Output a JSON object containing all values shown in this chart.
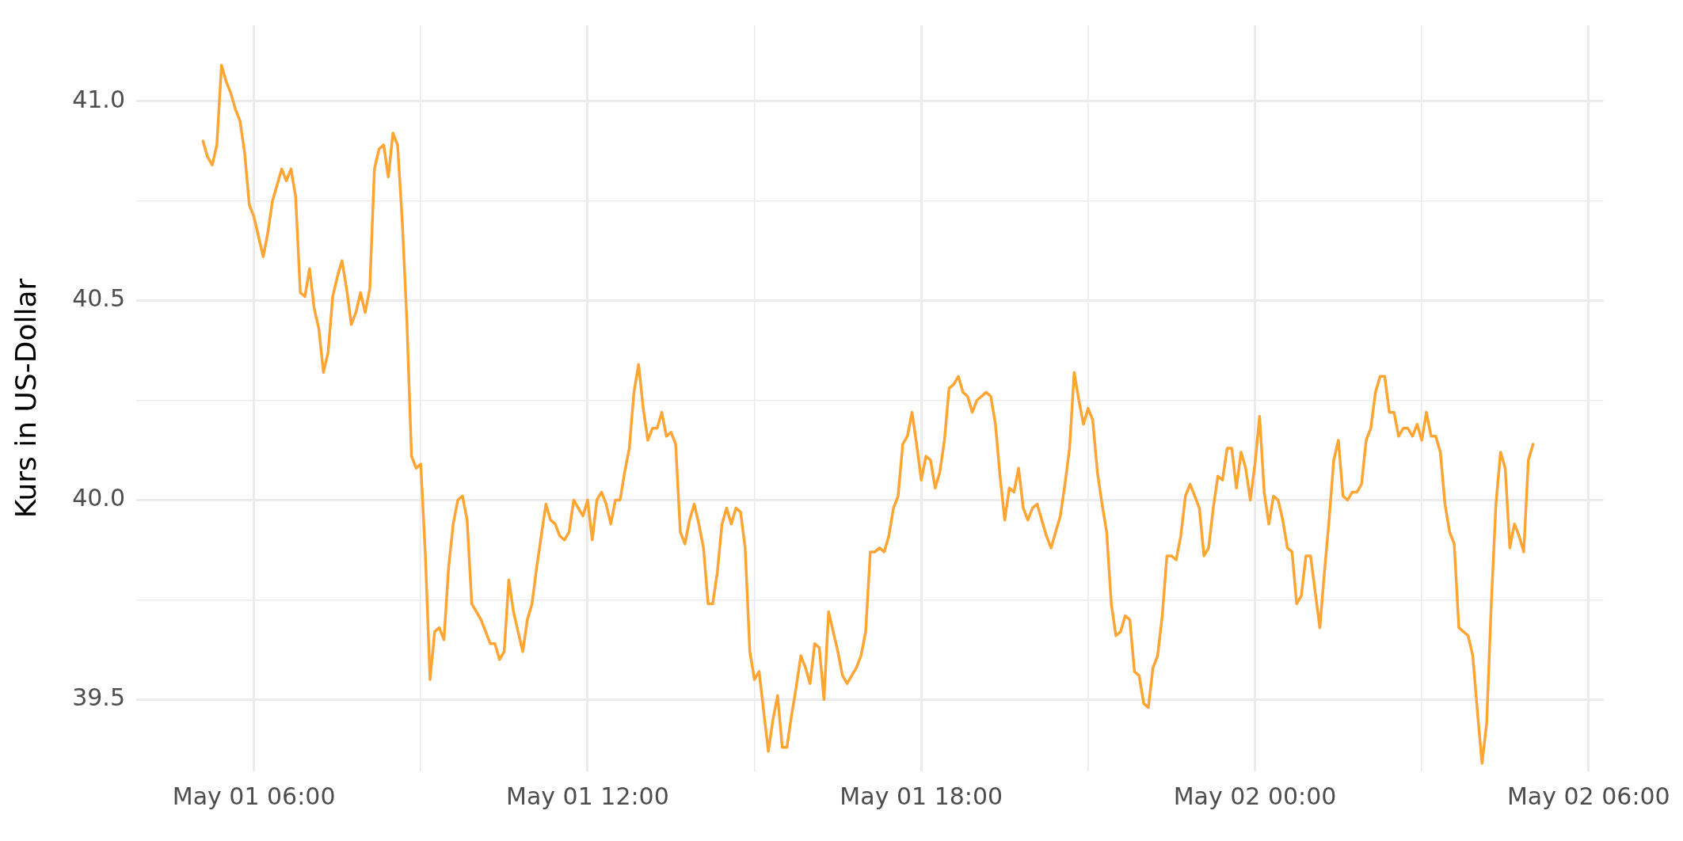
{
  "chart_data": {
    "type": "line",
    "ylabel": "Kurs in US-Dollar",
    "grid": true,
    "legend": false,
    "marker": "none",
    "line_style": "solid",
    "xlim": [
      "--05-01T03:53",
      "--05-02T06:16"
    ],
    "xticks": [
      {
        "value": "--05-01T06:00",
        "label": "May 01 06:00"
      },
      {
        "value": "--05-01T09:00",
        "label": null
      },
      {
        "value": "--05-01T12:00",
        "label": "May 01 12:00"
      },
      {
        "value": "--05-01T15:00",
        "label": null
      },
      {
        "value": "--05-01T18:00",
        "label": "May 01 18:00"
      },
      {
        "value": "--05-01T21:00",
        "label": null
      },
      {
        "value": "--05-02T00:00",
        "label": "May 02 00:00"
      },
      {
        "value": "--05-02T03:00",
        "label": null
      },
      {
        "value": "--05-02T06:00",
        "label": "May 02 06:00"
      }
    ],
    "ylim": [
      39.32,
      41.19
    ],
    "yticks": [
      {
        "value": 39.5,
        "label": "39.5"
      },
      {
        "value": 39.75,
        "label": null
      },
      {
        "value": 40,
        "label": "40.0"
      },
      {
        "value": 40.25,
        "label": null
      },
      {
        "value": 40.5,
        "label": "40.5"
      },
      {
        "value": 40.75,
        "label": null
      },
      {
        "value": 41,
        "label": "41.0"
      }
    ],
    "series": [
      {
        "color": "#ffa533",
        "x": [
          "--05-01T05:05",
          "--05-01T05:10",
          "--05-01T05:15",
          "--05-01T05:20",
          "--05-01T05:25",
          "--05-01T05:30",
          "--05-01T05:35",
          "--05-01T05:40",
          "--05-01T05:45",
          "--05-01T05:50",
          "--05-01T05:55",
          "--05-01T06:00",
          "--05-01T06:05",
          "--05-01T06:10",
          "--05-01T06:15",
          "--05-01T06:20",
          "--05-01T06:25",
          "--05-01T06:30",
          "--05-01T06:35",
          "--05-01T06:40",
          "--05-01T06:45",
          "--05-01T06:50",
          "--05-01T06:55",
          "--05-01T07:00",
          "--05-01T07:05",
          "--05-01T07:10",
          "--05-01T07:15",
          "--05-01T07:20",
          "--05-01T07:25",
          "--05-01T07:30",
          "--05-01T07:35",
          "--05-01T07:40",
          "--05-01T07:45",
          "--05-01T07:50",
          "--05-01T07:55",
          "--05-01T08:00",
          "--05-01T08:05",
          "--05-01T08:10",
          "--05-01T08:15",
          "--05-01T08:20",
          "--05-01T08:25",
          "--05-01T08:30",
          "--05-01T08:35",
          "--05-01T08:40",
          "--05-01T08:45",
          "--05-01T08:50",
          "--05-01T08:55",
          "--05-01T09:00",
          "--05-01T09:05",
          "--05-01T09:10",
          "--05-01T09:15",
          "--05-01T09:20",
          "--05-01T09:25",
          "--05-01T09:30",
          "--05-01T09:35",
          "--05-01T09:40",
          "--05-01T09:45",
          "--05-01T09:50",
          "--05-01T09:55",
          "--05-01T10:00",
          "--05-01T10:05",
          "--05-01T10:10",
          "--05-01T10:15",
          "--05-01T10:20",
          "--05-01T10:25",
          "--05-01T10:30",
          "--05-01T10:35",
          "--05-01T10:40",
          "--05-01T10:45",
          "--05-01T10:50",
          "--05-01T10:55",
          "--05-01T11:00",
          "--05-01T11:05",
          "--05-01T11:10",
          "--05-01T11:15",
          "--05-01T11:20",
          "--05-01T11:25",
          "--05-01T11:30",
          "--05-01T11:35",
          "--05-01T11:40",
          "--05-01T11:45",
          "--05-01T11:50",
          "--05-01T11:55",
          "--05-01T12:00",
          "--05-01T12:05",
          "--05-01T12:10",
          "--05-01T12:15",
          "--05-01T12:20",
          "--05-01T12:25",
          "--05-01T12:30",
          "--05-01T12:35",
          "--05-01T12:40",
          "--05-01T12:45",
          "--05-01T12:50",
          "--05-01T12:55",
          "--05-01T13:00",
          "--05-01T13:05",
          "--05-01T13:10",
          "--05-01T13:15",
          "--05-01T13:20",
          "--05-01T13:25",
          "--05-01T13:30",
          "--05-01T13:35",
          "--05-01T13:40",
          "--05-01T13:45",
          "--05-01T13:50",
          "--05-01T13:55",
          "--05-01T14:00",
          "--05-01T14:05",
          "--05-01T14:10",
          "--05-01T14:15",
          "--05-01T14:20",
          "--05-01T14:25",
          "--05-01T14:30",
          "--05-01T14:35",
          "--05-01T14:40",
          "--05-01T14:45",
          "--05-01T14:50",
          "--05-01T14:55",
          "--05-01T15:00",
          "--05-01T15:05",
          "--05-01T15:10",
          "--05-01T15:15",
          "--05-01T15:20",
          "--05-01T15:25",
          "--05-01T15:30",
          "--05-01T15:35",
          "--05-01T15:40",
          "--05-01T15:45",
          "--05-01T15:50",
          "--05-01T15:55",
          "--05-01T16:00",
          "--05-01T16:05",
          "--05-01T16:10",
          "--05-01T16:15",
          "--05-01T16:20",
          "--05-01T16:25",
          "--05-01T16:30",
          "--05-01T16:35",
          "--05-01T16:40",
          "--05-01T16:45",
          "--05-01T16:50",
          "--05-01T16:55",
          "--05-01T17:00",
          "--05-01T17:05",
          "--05-01T17:10",
          "--05-01T17:15",
          "--05-01T17:20",
          "--05-01T17:25",
          "--05-01T17:30",
          "--05-01T17:35",
          "--05-01T17:40",
          "--05-01T17:45",
          "--05-01T17:50",
          "--05-01T17:55",
          "--05-01T18:00",
          "--05-01T18:05",
          "--05-01T18:10",
          "--05-01T18:15",
          "--05-01T18:20",
          "--05-01T18:25",
          "--05-01T18:30",
          "--05-01T18:35",
          "--05-01T18:40",
          "--05-01T18:45",
          "--05-01T18:50",
          "--05-01T18:55",
          "--05-01T19:00",
          "--05-01T19:05",
          "--05-01T19:10",
          "--05-01T19:15",
          "--05-01T19:20",
          "--05-01T19:25",
          "--05-01T19:30",
          "--05-01T19:35",
          "--05-01T19:40",
          "--05-01T19:45",
          "--05-01T19:50",
          "--05-01T19:55",
          "--05-01T20:00",
          "--05-01T20:05",
          "--05-01T20:10",
          "--05-01T20:15",
          "--05-01T20:20",
          "--05-01T20:25",
          "--05-01T20:30",
          "--05-01T20:35",
          "--05-01T20:40",
          "--05-01T20:45",
          "--05-01T20:50",
          "--05-01T20:55",
          "--05-01T21:00",
          "--05-01T21:05",
          "--05-01T21:10",
          "--05-01T21:15",
          "--05-01T21:20",
          "--05-01T21:25",
          "--05-01T21:30",
          "--05-01T21:35",
          "--05-01T21:40",
          "--05-01T21:45",
          "--05-01T21:50",
          "--05-01T21:55",
          "--05-01T22:00",
          "--05-01T22:05",
          "--05-01T22:10",
          "--05-01T22:15",
          "--05-01T22:20",
          "--05-01T22:25",
          "--05-01T22:30",
          "--05-01T22:35",
          "--05-01T22:40",
          "--05-01T22:45",
          "--05-01T22:50",
          "--05-01T22:55",
          "--05-01T23:00",
          "--05-01T23:05",
          "--05-01T23:10",
          "--05-01T23:15",
          "--05-01T23:20",
          "--05-01T23:25",
          "--05-01T23:30",
          "--05-01T23:35",
          "--05-01T23:40",
          "--05-01T23:45",
          "--05-01T23:50",
          "--05-01T23:55",
          "--05-02T00:00",
          "--05-02T00:05",
          "--05-02T00:10",
          "--05-02T00:15",
          "--05-02T00:20",
          "--05-02T00:25",
          "--05-02T00:30",
          "--05-02T00:35",
          "--05-02T00:40",
          "--05-02T00:45",
          "--05-02T00:50",
          "--05-02T00:55",
          "--05-02T01:00",
          "--05-02T01:05",
          "--05-02T01:10",
          "--05-02T01:15",
          "--05-02T01:20",
          "--05-02T01:25",
          "--05-02T01:30",
          "--05-02T01:35",
          "--05-02T01:40",
          "--05-02T01:45",
          "--05-02T01:50",
          "--05-02T01:55",
          "--05-02T02:00",
          "--05-02T02:05",
          "--05-02T02:10",
          "--05-02T02:15",
          "--05-02T02:20",
          "--05-02T02:25",
          "--05-02T02:30",
          "--05-02T02:35",
          "--05-02T02:40",
          "--05-02T02:45",
          "--05-02T02:50",
          "--05-02T02:55",
          "--05-02T03:00",
          "--05-02T03:05",
          "--05-02T03:10",
          "--05-02T03:15",
          "--05-02T03:20",
          "--05-02T03:25",
          "--05-02T03:30",
          "--05-02T03:35",
          "--05-02T03:40",
          "--05-02T03:45",
          "--05-02T03:50",
          "--05-02T03:55",
          "--05-02T04:00",
          "--05-02T04:05",
          "--05-02T04:10",
          "--05-02T04:15",
          "--05-02T04:20",
          "--05-02T04:25",
          "--05-02T04:30",
          "--05-02T04:35",
          "--05-02T04:40",
          "--05-02T04:45",
          "--05-02T04:50",
          "--05-02T04:55",
          "--05-02T05:00"
        ],
        "values": [
          40.9,
          40.86,
          40.84,
          40.89,
          41.09,
          41.05,
          41.02,
          40.98,
          40.95,
          40.87,
          40.74,
          40.71,
          40.66,
          40.61,
          40.67,
          40.75,
          40.79,
          40.83,
          40.8,
          40.83,
          40.76,
          40.52,
          40.51,
          40.58,
          40.48,
          40.43,
          40.32,
          40.37,
          40.51,
          40.56,
          40.6,
          40.53,
          40.44,
          40.47,
          40.52,
          40.47,
          40.53,
          40.83,
          40.88,
          40.89,
          40.81,
          40.92,
          40.89,
          40.7,
          40.45,
          40.11,
          40.08,
          40.09,
          39.86,
          39.55,
          39.67,
          39.68,
          39.65,
          39.83,
          39.94,
          40.0,
          40.01,
          39.95,
          39.74,
          39.72,
          39.7,
          39.67,
          39.64,
          39.64,
          39.6,
          39.62,
          39.8,
          39.72,
          39.67,
          39.62,
          39.7,
          39.74,
          39.83,
          39.91,
          39.99,
          39.95,
          39.94,
          39.91,
          39.9,
          39.92,
          40.0,
          39.98,
          39.96,
          40.0,
          39.9,
          40.0,
          40.02,
          39.99,
          39.94,
          40.0,
          40.0,
          40.07,
          40.13,
          40.27,
          40.34,
          40.23,
          40.15,
          40.18,
          40.18,
          40.22,
          40.16,
          40.17,
          40.14,
          39.92,
          39.89,
          39.95,
          39.99,
          39.94,
          39.88,
          39.74,
          39.74,
          39.82,
          39.94,
          39.98,
          39.94,
          39.98,
          39.97,
          39.88,
          39.62,
          39.55,
          39.57,
          39.47,
          39.37,
          39.45,
          39.51,
          39.38,
          39.38,
          39.46,
          39.53,
          39.61,
          39.58,
          39.54,
          39.64,
          39.63,
          39.5,
          39.72,
          39.67,
          39.62,
          39.56,
          39.54,
          39.56,
          39.58,
          39.61,
          39.67,
          39.87,
          39.87,
          39.88,
          39.87,
          39.91,
          39.98,
          40.01,
          40.14,
          40.16,
          40.22,
          40.14,
          40.05,
          40.11,
          40.1,
          40.03,
          40.07,
          40.15,
          40.28,
          40.29,
          40.31,
          40.27,
          40.26,
          40.22,
          40.25,
          40.26,
          40.27,
          40.26,
          40.19,
          40.06,
          39.95,
          40.03,
          40.02,
          40.08,
          39.98,
          39.95,
          39.98,
          39.99,
          39.95,
          39.91,
          39.88,
          39.92,
          39.96,
          40.04,
          40.13,
          40.32,
          40.25,
          40.19,
          40.23,
          40.2,
          40.07,
          39.99,
          39.92,
          39.74,
          39.66,
          39.67,
          39.71,
          39.7,
          39.57,
          39.56,
          39.49,
          39.48,
          39.58,
          39.61,
          39.71,
          39.86,
          39.86,
          39.85,
          39.91,
          40.01,
          40.04,
          40.01,
          39.98,
          39.86,
          39.88,
          39.98,
          40.06,
          40.05,
          40.13,
          40.13,
          40.03,
          40.12,
          40.08,
          40.0,
          40.09,
          40.21,
          40.02,
          39.94,
          40.01,
          40.0,
          39.95,
          39.88,
          39.87,
          39.74,
          39.76,
          39.86,
          39.86,
          39.77,
          39.68,
          39.82,
          39.95,
          40.1,
          40.15,
          40.01,
          40.0,
          40.02,
          40.02,
          40.04,
          40.15,
          40.18,
          40.27,
          40.31,
          40.31,
          40.22,
          40.22,
          40.16,
          40.18,
          40.18,
          40.16,
          40.19,
          40.15,
          40.22,
          40.16,
          40.16,
          40.12,
          39.99,
          39.92,
          39.89,
          39.68,
          39.67,
          39.66,
          39.61,
          39.47,
          39.34,
          39.44,
          39.74,
          39.99,
          40.12,
          40.08,
          39.88,
          39.94,
          39.91,
          39.87,
          40.1,
          40.14
        ]
      }
    ]
  }
}
